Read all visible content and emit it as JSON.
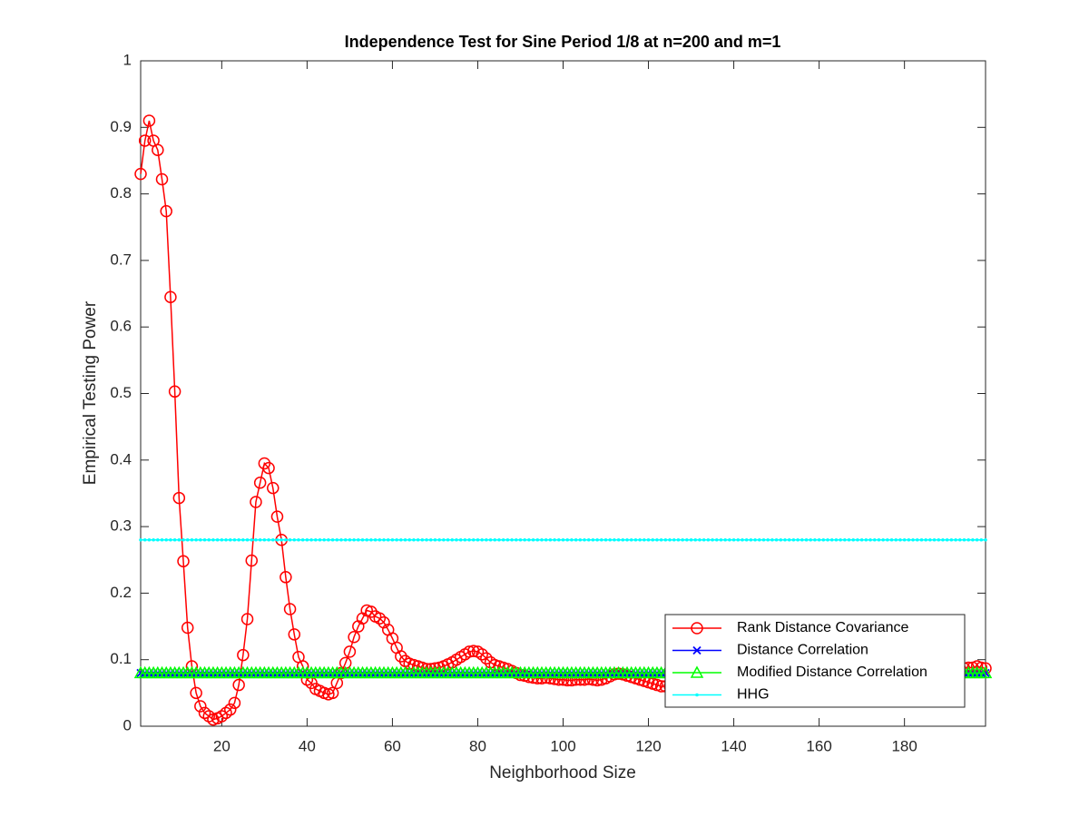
{
  "chart_data": {
    "type": "line",
    "title": "Independence Test for Sine Period 1/8 at n=200 and m=1",
    "x_label": "Neighborhood Size",
    "y_label": "Empirical Testing Power",
    "xlim": [
      1,
      199
    ],
    "ylim": [
      0,
      1
    ],
    "xticks": [
      20,
      40,
      60,
      80,
      100,
      120,
      140,
      160,
      180
    ],
    "yticks": [
      0,
      0.1,
      0.2,
      0.3,
      0.4,
      0.5,
      0.6,
      0.7,
      0.8,
      0.9,
      1
    ],
    "grid": false,
    "legend_position": "southeast",
    "x": [
      1,
      2,
      3,
      4,
      5,
      6,
      7,
      8,
      9,
      10,
      11,
      12,
      13,
      14,
      15,
      16,
      17,
      18,
      19,
      20,
      21,
      22,
      23,
      24,
      25,
      26,
      27,
      28,
      29,
      30,
      31,
      32,
      33,
      34,
      35,
      36,
      37,
      38,
      39,
      40,
      41,
      42,
      43,
      44,
      45,
      46,
      47,
      48,
      49,
      50,
      51,
      52,
      53,
      54,
      55,
      56,
      57,
      58,
      59,
      60,
      61,
      62,
      63,
      64,
      65,
      66,
      67,
      68,
      69,
      70,
      71,
      72,
      73,
      74,
      75,
      76,
      77,
      78,
      79,
      80,
      81,
      82,
      83,
      84,
      85,
      86,
      87,
      88,
      89,
      90,
      91,
      92,
      93,
      94,
      95,
      96,
      97,
      98,
      99,
      100,
      101,
      102,
      103,
      104,
      105,
      106,
      107,
      108,
      109,
      110,
      111,
      112,
      113,
      114,
      115,
      116,
      117,
      118,
      119,
      120,
      121,
      122,
      123,
      124,
      125,
      126,
      127,
      128,
      129,
      130,
      131,
      132,
      133,
      134,
      135,
      136,
      137,
      138,
      139,
      140,
      141,
      142,
      143,
      144,
      145,
      146,
      147,
      148,
      149,
      150,
      151,
      152,
      153,
      154,
      155,
      156,
      157,
      158,
      159,
      160,
      161,
      162,
      163,
      164,
      165,
      166,
      167,
      168,
      169,
      170,
      171,
      172,
      173,
      174,
      175,
      176,
      177,
      178,
      179,
      180,
      181,
      182,
      183,
      184,
      185,
      186,
      187,
      188,
      189,
      190,
      191,
      192,
      193,
      194,
      195,
      196,
      197,
      198,
      199
    ],
    "series": [
      {
        "name": "Rank Distance Covariance",
        "color": "#ff0000",
        "marker": "circle",
        "values": [
          0.83,
          0.88,
          0.91,
          0.88,
          0.866,
          0.822,
          0.774,
          0.645,
          0.503,
          0.343,
          0.248,
          0.148,
          0.09,
          0.05,
          0.03,
          0.02,
          0.015,
          0.01,
          0.012,
          0.015,
          0.02,
          0.025,
          0.035,
          0.062,
          0.107,
          0.161,
          0.249,
          0.337,
          0.366,
          0.395,
          0.388,
          0.358,
          0.315,
          0.28,
          0.224,
          0.176,
          0.138,
          0.104,
          0.09,
          0.07,
          0.065,
          0.056,
          0.053,
          0.05,
          0.048,
          0.05,
          0.065,
          0.08,
          0.095,
          0.112,
          0.134,
          0.15,
          0.162,
          0.174,
          0.172,
          0.165,
          0.162,
          0.156,
          0.145,
          0.132,
          0.118,
          0.105,
          0.098,
          0.094,
          0.092,
          0.09,
          0.088,
          0.086,
          0.086,
          0.087,
          0.088,
          0.09,
          0.093,
          0.096,
          0.1,
          0.104,
          0.108,
          0.112,
          0.113,
          0.112,
          0.108,
          0.102,
          0.096,
          0.092,
          0.09,
          0.088,
          0.086,
          0.083,
          0.08,
          0.077,
          0.076,
          0.074,
          0.073,
          0.072,
          0.072,
          0.073,
          0.072,
          0.071,
          0.07,
          0.07,
          0.069,
          0.069,
          0.07,
          0.07,
          0.07,
          0.071,
          0.07,
          0.069,
          0.07,
          0.072,
          0.075,
          0.078,
          0.079,
          0.078,
          0.076,
          0.074,
          0.072,
          0.07,
          0.068,
          0.066,
          0.064,
          0.062,
          0.06,
          0.06,
          0.06,
          0.06,
          0.061,
          0.062,
          0.063,
          0.064,
          0.065,
          0.066,
          0.066,
          0.067,
          0.067,
          0.068,
          0.068,
          0.068,
          0.069,
          0.069,
          0.07,
          0.07,
          0.07,
          0.071,
          0.071,
          0.071,
          0.072,
          0.072,
          0.072,
          0.073,
          0.073,
          0.073,
          0.074,
          0.074,
          0.074,
          0.075,
          0.075,
          0.075,
          0.076,
          0.076,
          0.076,
          0.077,
          0.077,
          0.077,
          0.078,
          0.078,
          0.078,
          0.079,
          0.079,
          0.079,
          0.08,
          0.08,
          0.08,
          0.081,
          0.081,
          0.081,
          0.082,
          0.082,
          0.082,
          0.083,
          0.083,
          0.083,
          0.084,
          0.084,
          0.084,
          0.085,
          0.085,
          0.085,
          0.086,
          0.086,
          0.086,
          0.087,
          0.087,
          0.087,
          0.088,
          0.088,
          0.09,
          0.088,
          0.087
        ]
      },
      {
        "name": "Distance Correlation",
        "color": "#0000ff",
        "marker": "x",
        "values": [
          0.08,
          0.08,
          0.08,
          0.08,
          0.08,
          0.08,
          0.08,
          0.08,
          0.08,
          0.08,
          0.08,
          0.08,
          0.08,
          0.08,
          0.08,
          0.08,
          0.08,
          0.08,
          0.08,
          0.08,
          0.08,
          0.08,
          0.08,
          0.08,
          0.08,
          0.08,
          0.08,
          0.08,
          0.08,
          0.08,
          0.08,
          0.08,
          0.08,
          0.08,
          0.08,
          0.08,
          0.08,
          0.08,
          0.08,
          0.08,
          0.08,
          0.08,
          0.08,
          0.08,
          0.08,
          0.08,
          0.08,
          0.08,
          0.08,
          0.08,
          0.08,
          0.08,
          0.08,
          0.08,
          0.08,
          0.08,
          0.08,
          0.08,
          0.08,
          0.08,
          0.08,
          0.08,
          0.08,
          0.08,
          0.08,
          0.08,
          0.08,
          0.08,
          0.08,
          0.08,
          0.08,
          0.08,
          0.08,
          0.08,
          0.08,
          0.08,
          0.08,
          0.08,
          0.08,
          0.08,
          0.08,
          0.08,
          0.08,
          0.08,
          0.08,
          0.08,
          0.08,
          0.08,
          0.08,
          0.08,
          0.08,
          0.08,
          0.08,
          0.08,
          0.08,
          0.08,
          0.08,
          0.08,
          0.08,
          0.08,
          0.08,
          0.08,
          0.08,
          0.08,
          0.08,
          0.08,
          0.08,
          0.08,
          0.08,
          0.08,
          0.08,
          0.08,
          0.08,
          0.08,
          0.08,
          0.08,
          0.08,
          0.08,
          0.08,
          0.08,
          0.08,
          0.08,
          0.08,
          0.08,
          0.08,
          0.08,
          0.08,
          0.08,
          0.08,
          0.08,
          0.08,
          0.08,
          0.08,
          0.08,
          0.08,
          0.08,
          0.08,
          0.08,
          0.08,
          0.08,
          0.08,
          0.08,
          0.08,
          0.08,
          0.08,
          0.08,
          0.08,
          0.08,
          0.08,
          0.08,
          0.08,
          0.08,
          0.08,
          0.08,
          0.08,
          0.08,
          0.08,
          0.08,
          0.08,
          0.08,
          0.08,
          0.08,
          0.08,
          0.08,
          0.08,
          0.08,
          0.08,
          0.08,
          0.08,
          0.08,
          0.08,
          0.08,
          0.08,
          0.08,
          0.08,
          0.08,
          0.08,
          0.08,
          0.08,
          0.08,
          0.08,
          0.08,
          0.08,
          0.08,
          0.08,
          0.08,
          0.08,
          0.08,
          0.08,
          0.08,
          0.08,
          0.08,
          0.08,
          0.08,
          0.08,
          0.08,
          0.08,
          0.08,
          0.08
        ]
      },
      {
        "name": "Modified Distance Correlation",
        "color": "#00ff00",
        "marker": "triangle",
        "values": [
          0.08,
          0.08,
          0.08,
          0.08,
          0.08,
          0.08,
          0.08,
          0.08,
          0.08,
          0.08,
          0.08,
          0.08,
          0.08,
          0.08,
          0.08,
          0.08,
          0.08,
          0.08,
          0.08,
          0.08,
          0.08,
          0.08,
          0.08,
          0.08,
          0.08,
          0.08,
          0.08,
          0.08,
          0.08,
          0.08,
          0.08,
          0.08,
          0.08,
          0.08,
          0.08,
          0.08,
          0.08,
          0.08,
          0.08,
          0.08,
          0.08,
          0.08,
          0.08,
          0.08,
          0.08,
          0.08,
          0.08,
          0.08,
          0.08,
          0.08,
          0.08,
          0.08,
          0.08,
          0.08,
          0.08,
          0.08,
          0.08,
          0.08,
          0.08,
          0.08,
          0.08,
          0.08,
          0.08,
          0.08,
          0.08,
          0.08,
          0.08,
          0.08,
          0.08,
          0.08,
          0.08,
          0.08,
          0.08,
          0.08,
          0.08,
          0.08,
          0.08,
          0.08,
          0.08,
          0.08,
          0.08,
          0.08,
          0.08,
          0.08,
          0.08,
          0.08,
          0.08,
          0.08,
          0.08,
          0.08,
          0.08,
          0.08,
          0.08,
          0.08,
          0.08,
          0.08,
          0.08,
          0.08,
          0.08,
          0.08,
          0.08,
          0.08,
          0.08,
          0.08,
          0.08,
          0.08,
          0.08,
          0.08,
          0.08,
          0.08,
          0.08,
          0.08,
          0.08,
          0.08,
          0.08,
          0.08,
          0.08,
          0.08,
          0.08,
          0.08,
          0.08,
          0.08,
          0.08,
          0.08,
          0.08,
          0.08,
          0.08,
          0.08,
          0.08,
          0.08,
          0.08,
          0.08,
          0.08,
          0.08,
          0.08,
          0.08,
          0.08,
          0.08,
          0.08,
          0.08,
          0.08,
          0.08,
          0.08,
          0.08,
          0.08,
          0.08,
          0.08,
          0.08,
          0.08,
          0.08,
          0.08,
          0.08,
          0.08,
          0.08,
          0.08,
          0.08,
          0.08,
          0.08,
          0.08,
          0.08,
          0.08,
          0.08,
          0.08,
          0.08,
          0.08,
          0.08,
          0.08,
          0.08,
          0.08,
          0.08,
          0.08,
          0.08,
          0.08,
          0.08,
          0.08,
          0.08,
          0.08,
          0.08,
          0.08,
          0.08,
          0.08,
          0.08,
          0.08,
          0.08,
          0.08,
          0.08,
          0.08,
          0.08,
          0.08,
          0.08,
          0.08,
          0.08,
          0.08,
          0.08,
          0.08,
          0.08,
          0.08,
          0.08,
          0.08
        ]
      },
      {
        "name": "HHG",
        "color": "#00ffff",
        "marker": "dot",
        "values": [
          0.28,
          0.28,
          0.28,
          0.28,
          0.28,
          0.28,
          0.28,
          0.28,
          0.28,
          0.28,
          0.28,
          0.28,
          0.28,
          0.28,
          0.28,
          0.28,
          0.28,
          0.28,
          0.28,
          0.28,
          0.28,
          0.28,
          0.28,
          0.28,
          0.28,
          0.28,
          0.28,
          0.28,
          0.28,
          0.28,
          0.28,
          0.28,
          0.28,
          0.28,
          0.28,
          0.28,
          0.28,
          0.28,
          0.28,
          0.28,
          0.28,
          0.28,
          0.28,
          0.28,
          0.28,
          0.28,
          0.28,
          0.28,
          0.28,
          0.28,
          0.28,
          0.28,
          0.28,
          0.28,
          0.28,
          0.28,
          0.28,
          0.28,
          0.28,
          0.28,
          0.28,
          0.28,
          0.28,
          0.28,
          0.28,
          0.28,
          0.28,
          0.28,
          0.28,
          0.28,
          0.28,
          0.28,
          0.28,
          0.28,
          0.28,
          0.28,
          0.28,
          0.28,
          0.28,
          0.28,
          0.28,
          0.28,
          0.28,
          0.28,
          0.28,
          0.28,
          0.28,
          0.28,
          0.28,
          0.28,
          0.28,
          0.28,
          0.28,
          0.28,
          0.28,
          0.28,
          0.28,
          0.28,
          0.28,
          0.28,
          0.28,
          0.28,
          0.28,
          0.28,
          0.28,
          0.28,
          0.28,
          0.28,
          0.28,
          0.28,
          0.28,
          0.28,
          0.28,
          0.28,
          0.28,
          0.28,
          0.28,
          0.28,
          0.28,
          0.28,
          0.28,
          0.28,
          0.28,
          0.28,
          0.28,
          0.28,
          0.28,
          0.28,
          0.28,
          0.28,
          0.28,
          0.28,
          0.28,
          0.28,
          0.28,
          0.28,
          0.28,
          0.28,
          0.28,
          0.28,
          0.28,
          0.28,
          0.28,
          0.28,
          0.28,
          0.28,
          0.28,
          0.28,
          0.28,
          0.28,
          0.28,
          0.28,
          0.28,
          0.28,
          0.28,
          0.28,
          0.28,
          0.28,
          0.28,
          0.28,
          0.28,
          0.28,
          0.28,
          0.28,
          0.28,
          0.28,
          0.28,
          0.28,
          0.28,
          0.28,
          0.28,
          0.28,
          0.28,
          0.28,
          0.28,
          0.28,
          0.28,
          0.28,
          0.28,
          0.28,
          0.28,
          0.28,
          0.28,
          0.28,
          0.28,
          0.28,
          0.28,
          0.28,
          0.28,
          0.28,
          0.28,
          0.28,
          0.28,
          0.28,
          0.28,
          0.28,
          0.28,
          0.28,
          0.28
        ]
      }
    ]
  }
}
